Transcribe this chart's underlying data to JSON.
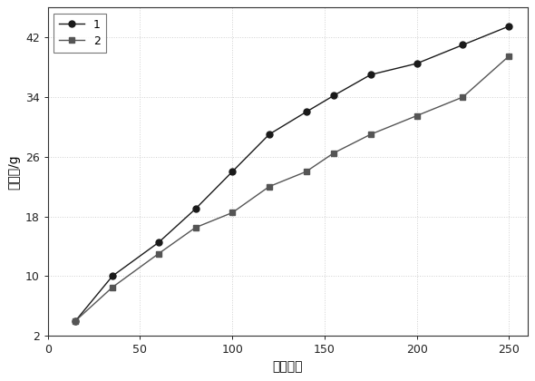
{
  "series1": {
    "label": "1",
    "x": [
      15,
      35,
      60,
      80,
      100,
      120,
      140,
      155,
      175,
      200,
      225,
      250
    ],
    "y": [
      4.0,
      10.0,
      14.5,
      19.0,
      24.0,
      29.0,
      32.0,
      34.2,
      37.0,
      38.5,
      41.0,
      43.5
    ],
    "color": "#1a1a1a",
    "marker": "o",
    "markersize": 5
  },
  "series2": {
    "label": "2",
    "x": [
      15,
      35,
      60,
      80,
      100,
      120,
      140,
      155,
      175,
      200,
      225,
      250
    ],
    "y": [
      4.0,
      8.5,
      13.0,
      16.5,
      18.5,
      22.0,
      24.0,
      26.5,
      29.0,
      31.5,
      34.0,
      39.5
    ],
    "color": "#555555",
    "marker": "s",
    "markersize": 5
  },
  "xlabel": "循环次数",
  "ylabel": "失水量/g",
  "xlim": [
    0,
    260
  ],
  "ylim": [
    2,
    46
  ],
  "xticks": [
    0,
    50,
    100,
    150,
    200,
    250
  ],
  "yticks": [
    2,
    10,
    18,
    26,
    34,
    42
  ],
  "grid": true,
  "grid_color": "#d0d0d0",
  "grid_style": ":",
  "background_color": "#ffffff",
  "legend_loc": "upper left",
  "fig_width": 5.9,
  "fig_height": 4.2,
  "dpi": 100
}
